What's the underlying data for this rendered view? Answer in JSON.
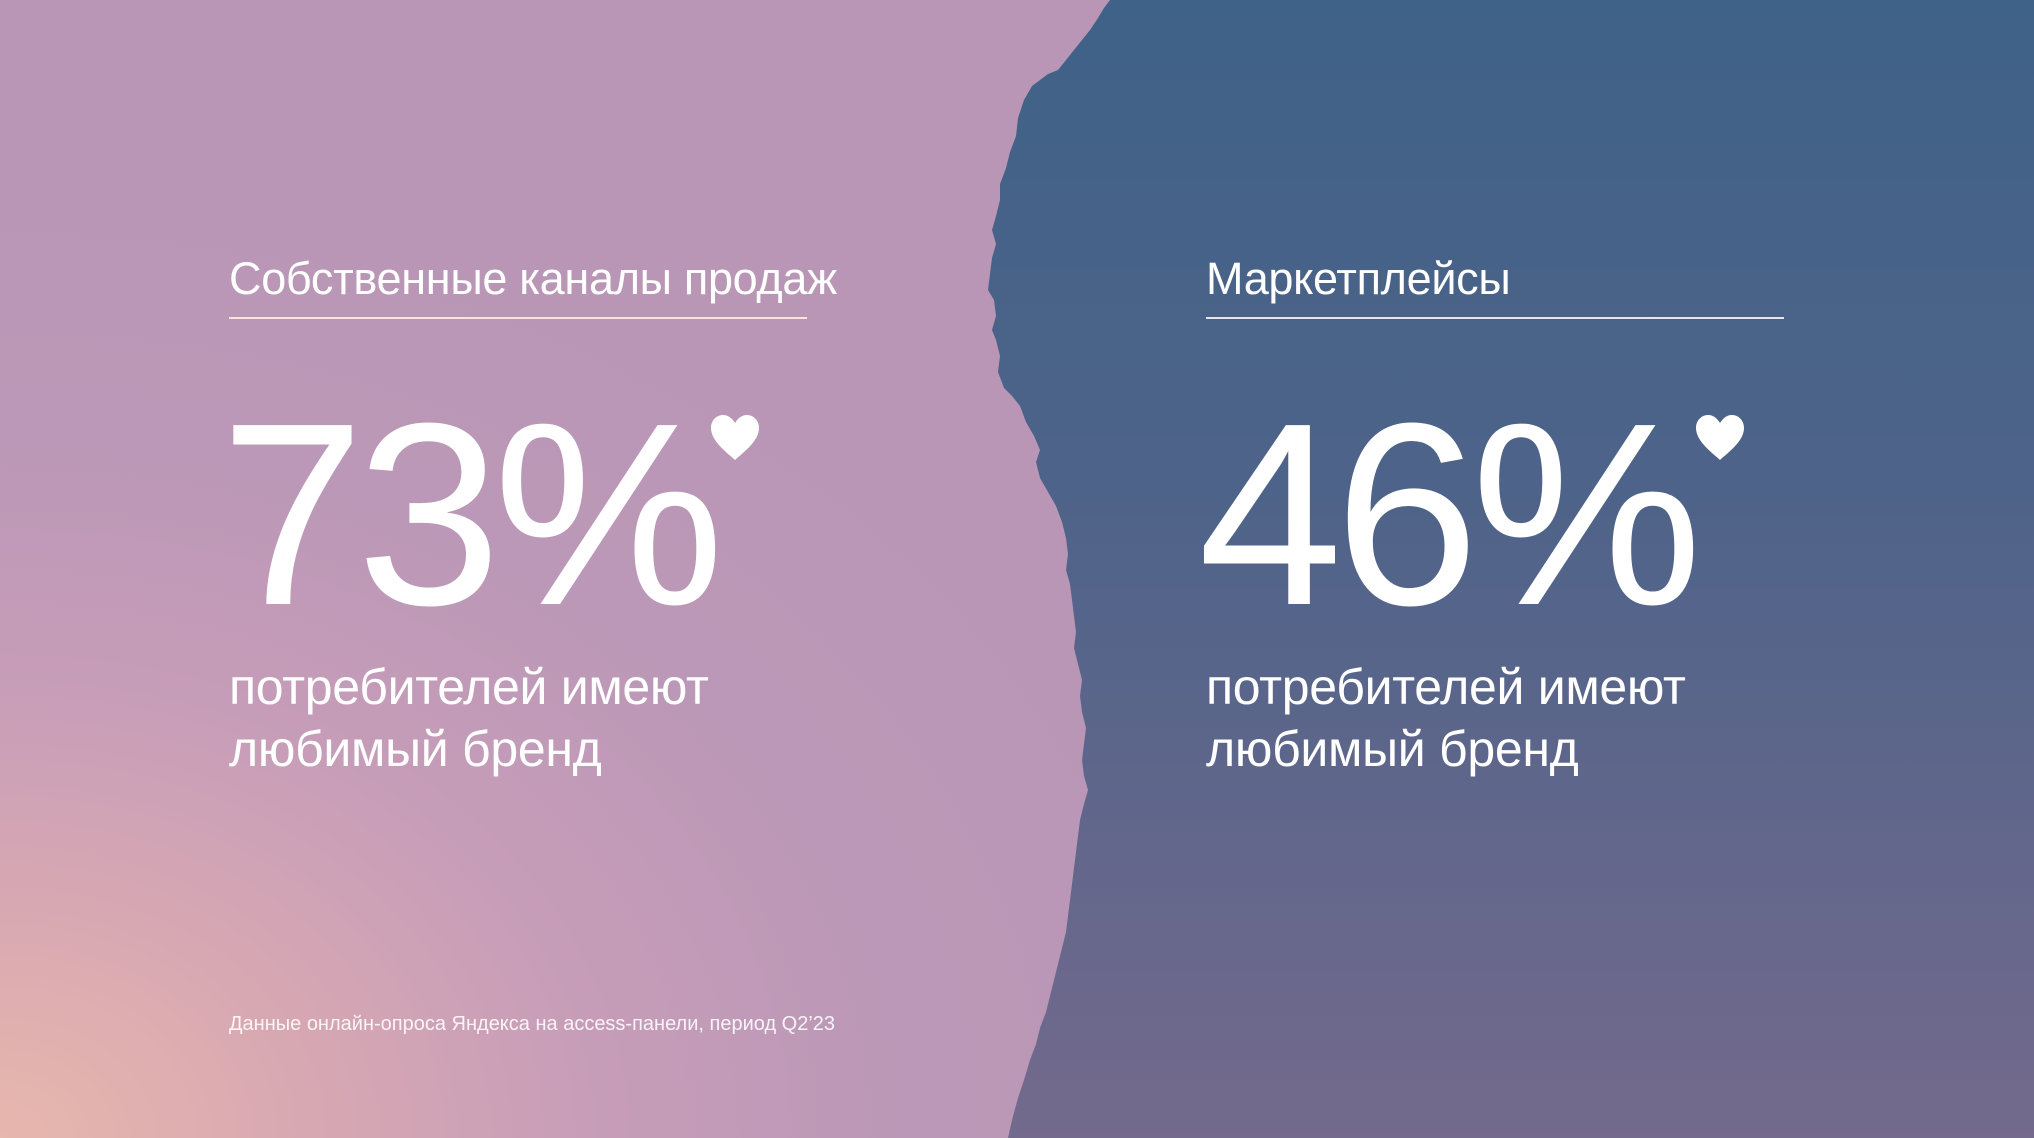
{
  "colors": {
    "left_panel": "#bb98b7",
    "left_panel_warm": "#e7b7ad",
    "right_panel_top": "#3f6288",
    "right_panel_bottom": "#716a8d",
    "text": "#ffffff"
  },
  "left": {
    "heading": "Собственные каналы продаж",
    "value": "73%",
    "icon": "heart-icon",
    "description_line1": "потребителей имеют",
    "description_line2": "любимый бренд"
  },
  "right": {
    "heading": "Маркетплейсы",
    "value": "46%",
    "icon": "heart-icon",
    "description_line1": "потребителей имеют",
    "description_line2": "любимый бренд"
  },
  "footnote": "Данные онлайн-опроса Яндекса на access-панели, период Q2’23"
}
